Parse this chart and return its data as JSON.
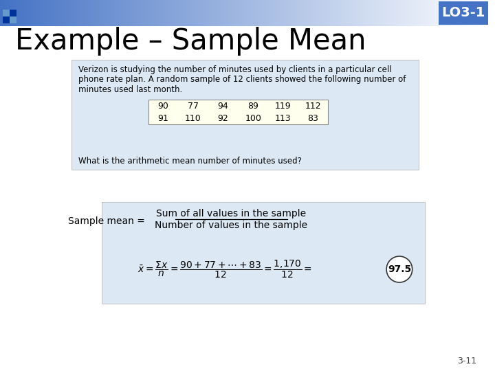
{
  "title": "Example – Sample Mean",
  "lo_label": "LO3-1",
  "page_num": "3-11",
  "bg_color": "#ffffff",
  "header_gradient_left": "#4472c4",
  "header_gradient_right": "#ffffff",
  "corner_dark_blue": "#003399",
  "corner_light_blue": "#6699cc",
  "problem_text_line1": "Verizon is studying the number of minutes used by clients in a particular cell",
  "problem_text_line2": "phone rate plan. A random sample of 12 clients showed the following number of",
  "problem_text_line3": "minutes used last month.",
  "data_row1": [
    "90",
    "77",
    "94",
    "89",
    "119",
    "112"
  ],
  "data_row2": [
    "91",
    "110",
    "92",
    "100",
    "113",
    "83"
  ],
  "question_text": "What is the arithmetic mean number of minutes used?",
  "table_bg": "#ffffee",
  "problem_box_bg": "#dce9f5",
  "formula_box_bg": "#dce9f5",
  "sample_mean_label": "Sample mean =",
  "fraction_top": "Sum of all values in the sample",
  "fraction_bot": "Number of values in the sample",
  "result": "97.5",
  "result_circle_color": "#ffffff",
  "result_circle_edge": "#333333"
}
